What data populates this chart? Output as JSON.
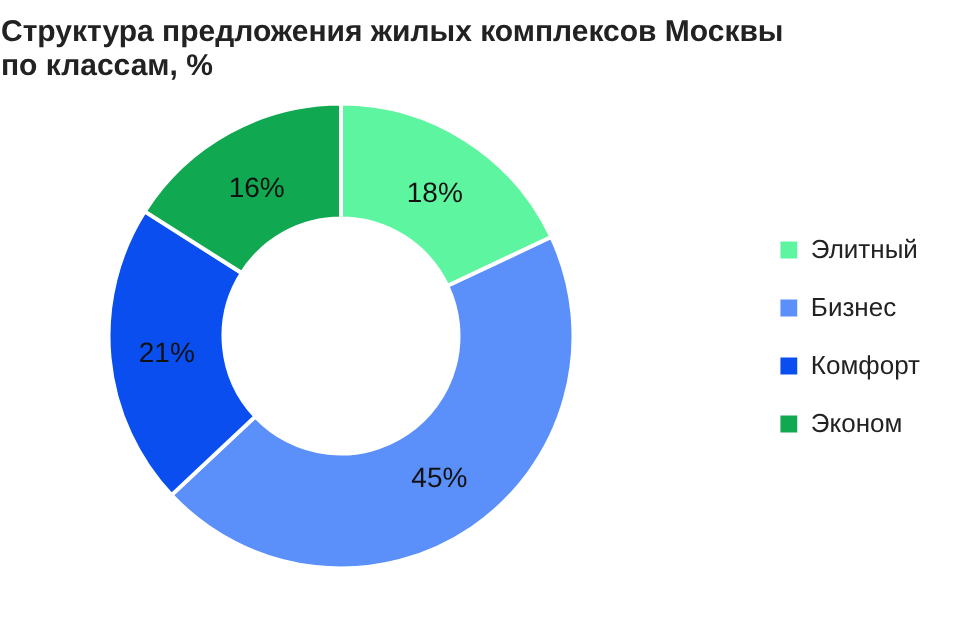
{
  "chart_data": {
    "type": "donut",
    "title": "Структура предложения жилых комплексов Москвы\nпо классам, %",
    "categories": [
      "Элитный",
      "Бизнес",
      "Комфорт",
      "Эконом"
    ],
    "values": [
      18,
      45,
      21,
      16
    ],
    "value_labels": [
      "18%",
      "45%",
      "21%",
      "16%"
    ],
    "colors": [
      "#5ef5a0",
      "#5b8ff9",
      "#0a4ef0",
      "#10a850"
    ],
    "legend": "right"
  }
}
